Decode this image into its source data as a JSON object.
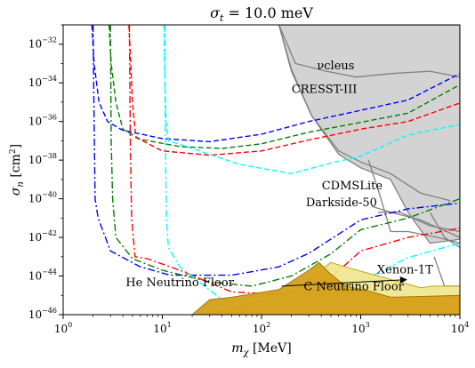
{
  "chart_data": {
    "type": "line",
    "title": "σ_t = 10.0 meV",
    "title_parts": {
      "sym": "σ",
      "sub": "t",
      "value": " = 10.0 meV"
    },
    "xlabel_parts": {
      "sym": "m",
      "sub": "χ",
      "unit": " [MeV]"
    },
    "ylabel_parts": {
      "sym": "σ",
      "sub": "n",
      "unit_pre": " [cm",
      "unit_sup": "2",
      "unit_post": "]"
    },
    "x_scale": "log",
    "y_scale": "log",
    "xlim": [
      1,
      10000
    ],
    "ylim": [
      1e-46,
      1e-31
    ],
    "grid": false,
    "x_ticks": [
      {
        "base": "10",
        "exp": "0",
        "value": 1
      },
      {
        "base": "10",
        "exp": "1",
        "value": 10
      },
      {
        "base": "10",
        "exp": "2",
        "value": 100
      },
      {
        "base": "10",
        "exp": "3",
        "value": 1000
      },
      {
        "base": "10",
        "exp": "4",
        "value": 10000
      }
    ],
    "y_ticks": [
      {
        "base": "10",
        "exp": "−46",
        "value": 1e-46
      },
      {
        "base": "10",
        "exp": "−44",
        "value": 1e-44
      },
      {
        "base": "10",
        "exp": "−42",
        "value": 1e-42
      },
      {
        "base": "10",
        "exp": "−40",
        "value": 1e-40
      },
      {
        "base": "10",
        "exp": "−38",
        "value": 1e-38
      },
      {
        "base": "10",
        "exp": "−36",
        "value": 1e-36
      },
      {
        "base": "10",
        "exp": "−34",
        "value": 1e-34
      },
      {
        "base": "10",
        "exp": "−32",
        "value": 1e-32
      }
    ],
    "excluded_region": {
      "color": "#d3d3d3",
      "edge_color": "#808080",
      "boundary": [
        [
          150,
          1e-31
        ],
        [
          200,
          4e-34
        ],
        [
          320,
          2e-36
        ],
        [
          600,
          2e-38
        ],
        [
          1000,
          4e-39
        ],
        [
          2000,
          1e-39
        ],
        [
          3000,
          2e-41
        ],
        [
          5000,
          5e-43
        ],
        [
          10000,
          8e-43
        ],
        [
          10000,
          1e-31
        ]
      ]
    },
    "experiment_curves": [
      {
        "points": [
          [
            150,
            1e-31
          ],
          [
            220,
            1e-33
          ],
          [
            450,
            4e-34
          ],
          [
            900,
            2e-34
          ],
          [
            2000,
            3e-34
          ],
          [
            5000,
            4e-34
          ],
          [
            10000,
            2e-34
          ]
        ]
      },
      {
        "points": [
          [
            150,
            1e-31
          ],
          [
            200,
            5e-34
          ],
          [
            320,
            2e-36
          ],
          [
            600,
            3e-38
          ],
          [
            1000,
            8e-39
          ],
          [
            2000,
            2e-39
          ],
          [
            4000,
            2e-40
          ],
          [
            8000,
            8e-41
          ]
        ]
      },
      {
        "points": [
          [
            1200,
            1e-38
          ],
          [
            1600,
            1e-40
          ],
          [
            2000,
            2e-42
          ],
          [
            3000,
            2e-42
          ],
          [
            6000,
            1e-42
          ],
          [
            10000,
            5e-43
          ]
        ]
      },
      {
        "points": [
          [
            1300,
            4e-41
          ],
          [
            2000,
            2e-41
          ],
          [
            4000,
            8e-42
          ],
          [
            10000,
            1e-42
          ]
        ]
      },
      {
        "points": [
          [
            1500,
            2e-41
          ],
          [
            2500,
            2e-41
          ],
          [
            5000,
            4e-42
          ],
          [
            10000,
            2e-42
          ]
        ]
      },
      {
        "points": [
          [
            5000,
            2e-41
          ],
          [
            7000,
            1e-42
          ],
          [
            10000,
            3e-43
          ]
        ]
      },
      {
        "points": [
          [
            5500,
            1e-43
          ],
          [
            7000,
            3e-45
          ],
          [
            10000,
            3e-45
          ]
        ]
      }
    ],
    "series": [
      {
        "color": "#0000ff",
        "dash": "dashed",
        "points": [
          [
            1.95,
            1e-31
          ],
          [
            2.05,
            1e-33
          ],
          [
            2.3,
            1e-35
          ],
          [
            2.8,
            1e-36
          ],
          [
            4,
            3.5e-37
          ],
          [
            10,
            1.3e-37
          ],
          [
            30,
            9e-38
          ],
          [
            100,
            2.2e-37
          ],
          [
            300,
            1e-36
          ],
          [
            1000,
            3.8e-36
          ],
          [
            3000,
            1.3e-35
          ],
          [
            10000,
            3e-34
          ]
        ]
      },
      {
        "color": "#008000",
        "dash": "dashed",
        "points": [
          [
            2.9,
            1e-31
          ],
          [
            3.05,
            1e-33
          ],
          [
            3.4,
            1e-35
          ],
          [
            4,
            4e-37
          ],
          [
            6,
            1.2e-37
          ],
          [
            15,
            5e-38
          ],
          [
            40,
            4e-38
          ],
          [
            100,
            7e-38
          ],
          [
            300,
            2.8e-37
          ],
          [
            1000,
            9e-37
          ],
          [
            3000,
            2.7e-36
          ],
          [
            10000,
            8e-35
          ]
        ]
      },
      {
        "color": "#ff0000",
        "dash": "dashed",
        "points": [
          [
            4.6,
            1e-31
          ],
          [
            4.8,
            1e-33
          ],
          [
            5.0,
            1e-35
          ],
          [
            5.4,
            1.5e-37
          ],
          [
            10,
            3e-38
          ],
          [
            30,
            1.8e-38
          ],
          [
            100,
            3e-38
          ],
          [
            300,
            1.1e-37
          ],
          [
            1000,
            4e-37
          ],
          [
            3000,
            1e-36
          ],
          [
            10000,
            9e-36
          ]
        ]
      },
      {
        "color": "#00ffff",
        "dash": "dashed",
        "points": [
          [
            10.4,
            1e-31
          ],
          [
            10.5,
            1e-33
          ],
          [
            10.9,
            1e-36
          ],
          [
            11.5,
            1e-37
          ],
          [
            20,
            4e-38
          ],
          [
            60,
            6e-39
          ],
          [
            200,
            2e-39
          ],
          [
            500,
            7e-39
          ],
          [
            1000,
            1.6e-38
          ],
          [
            3000,
            2e-37
          ],
          [
            10000,
            7e-37
          ]
        ]
      },
      {
        "color": "#0000ff",
        "dash": "dashdot",
        "points": [
          [
            2.0,
            1e-31
          ],
          [
            2.05,
            1e-36
          ],
          [
            2.1,
            1e-40
          ],
          [
            2.25,
            1e-41
          ],
          [
            3,
            2e-43
          ],
          [
            6,
            3e-44
          ],
          [
            12,
            1.1e-44
          ],
          [
            50,
            1.1e-44
          ],
          [
            150,
            3e-44
          ],
          [
            300,
            1.5e-43
          ],
          [
            1000,
            8e-42
          ],
          [
            3000,
            3e-41
          ],
          [
            10000,
            6e-41
          ]
        ]
      },
      {
        "color": "#008000",
        "dash": "dashdot",
        "points": [
          [
            3.0,
            1e-31
          ],
          [
            3.05,
            1e-37
          ],
          [
            3.15,
            1e-40
          ],
          [
            3.4,
            1e-42
          ],
          [
            5,
            8e-44
          ],
          [
            10,
            2e-44
          ],
          [
            30,
            5e-45
          ],
          [
            80,
            3e-45
          ],
          [
            200,
            1e-44
          ],
          [
            500,
            1.4e-43
          ],
          [
            1000,
            2.5e-42
          ],
          [
            3000,
            1e-41
          ],
          [
            10000,
            1e-40
          ]
        ]
      },
      {
        "color": "#ff0000",
        "dash": "dashdot",
        "points": [
          [
            4.65,
            1e-31
          ],
          [
            4.75,
            1e-37
          ],
          [
            4.9,
            1e-41
          ],
          [
            5.3,
            1e-43
          ],
          [
            7,
            8e-44
          ],
          [
            15,
            2e-44
          ],
          [
            50,
            1.5e-45
          ],
          [
            200,
            1e-45
          ],
          [
            500,
            8e-45
          ],
          [
            1000,
            2e-43
          ],
          [
            3000,
            1e-42
          ],
          [
            10000,
            3e-42
          ]
        ]
      },
      {
        "color": "#00ffff",
        "dash": "dashdot",
        "points": [
          [
            10.6,
            1e-31
          ],
          [
            10.7,
            1e-37
          ],
          [
            11,
            1e-41
          ],
          [
            11.5,
            3e-43
          ],
          [
            15,
            3e-44
          ],
          [
            40,
            6e-46
          ],
          [
            100,
            2e-46
          ],
          [
            300,
            6e-46
          ],
          [
            1000,
            5e-45
          ],
          [
            3000,
            9e-44
          ],
          [
            10000,
            5e-43
          ]
        ]
      }
    ],
    "floors": [
      {
        "color": "#f0e68c",
        "edge_color": "#b8a520",
        "alpha": 0.9,
        "upper": [
          [
            10000,
            1e-46
          ],
          [
            10000,
            3e-45
          ],
          [
            5500,
            3e-45
          ],
          [
            4000,
            2.5e-45
          ],
          [
            1500,
            1e-44
          ],
          [
            700,
            3e-44
          ],
          [
            500,
            5e-44
          ],
          [
            350,
            1.2e-44
          ],
          [
            250,
            2e-45
          ],
          [
            100,
            5e-46
          ],
          [
            30,
            1e-46
          ]
        ]
      },
      {
        "color": "#d4a017",
        "edge_color": "#a07810",
        "alpha": 0.95,
        "upper": [
          [
            10000,
            1e-46
          ],
          [
            10000,
            1e-45
          ],
          [
            5000,
            9e-46
          ],
          [
            2000,
            8e-46
          ],
          [
            1200,
            1.7e-45
          ],
          [
            700,
            3e-45
          ],
          [
            480,
            1.5e-44
          ],
          [
            380,
            5e-44
          ],
          [
            300,
            2e-44
          ],
          [
            150,
            2e-45
          ],
          [
            50,
            8e-46
          ],
          [
            30,
            6e-46
          ],
          [
            20,
            1e-46
          ]
        ]
      }
    ],
    "labels": [
      {
        "text": "νcleus",
        "x": 560,
        "y": 5e-34
      },
      {
        "text": "CRESST-III",
        "x": 430,
        "y": 3e-35
      },
      {
        "text": "CDMSLite",
        "x": 820,
        "y": 3e-40
      },
      {
        "text": "Darkside-50",
        "x": 640,
        "y": 4e-41
      },
      {
        "text": "Xenon-1T",
        "x": 2800,
        "y": 1.4e-44
      },
      {
        "text": "He Neutrino Floor",
        "x": 15,
        "y": 3e-45
      },
      {
        "text": "C Neutrino Floor",
        "x": 850,
        "y": 1.8e-45
      }
    ],
    "arrow": {
      "from": [
        160,
        3e-45
      ],
      "to": [
        2900,
        6.5e-45
      ]
    }
  }
}
